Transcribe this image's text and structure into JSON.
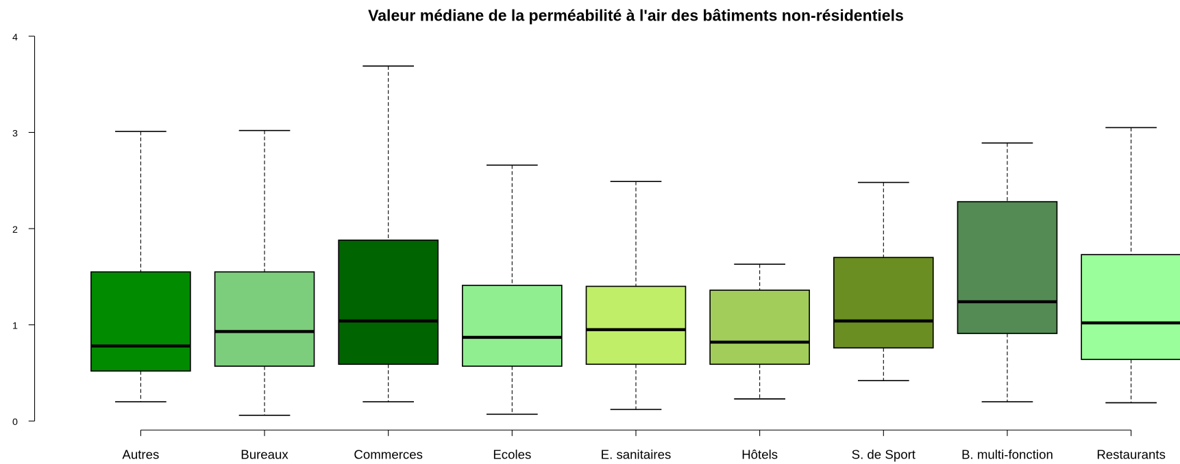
{
  "chart_data": {
    "type": "boxplot",
    "title": "Valeur médiane de la perméabilité à l'air des bâtiments non-résidentiels",
    "categories": [
      "Autres",
      "Bureaux",
      "Commerces",
      "Ecoles",
      "E. sanitaires",
      "Hôtels",
      "S. de Sport",
      "B. multi-fonction",
      "Restaurants"
    ],
    "colors": [
      "#008b00",
      "#7ccd7c",
      "#006400",
      "#90ee90",
      "#c0ee68",
      "#a2cd5a",
      "#6b8e23",
      "#548b54",
      "#9aff9a"
    ],
    "whisker_low": [
      0.2,
      0.06,
      0.2,
      0.07,
      0.12,
      0.23,
      0.42,
      0.2,
      0.19
    ],
    "q1": [
      0.52,
      0.57,
      0.59,
      0.57,
      0.59,
      0.59,
      0.76,
      0.91,
      0.64
    ],
    "median": [
      0.78,
      0.93,
      1.04,
      0.87,
      0.95,
      0.82,
      1.04,
      1.24,
      1.02
    ],
    "q3": [
      1.55,
      1.55,
      1.88,
      1.41,
      1.4,
      1.36,
      1.7,
      2.28,
      1.73
    ],
    "whisker_high": [
      3.01,
      3.02,
      3.69,
      2.66,
      2.49,
      1.63,
      2.48,
      2.89,
      3.05
    ],
    "ylim": [
      0,
      4
    ],
    "yticks": [
      0,
      1,
      2,
      3,
      4
    ]
  }
}
